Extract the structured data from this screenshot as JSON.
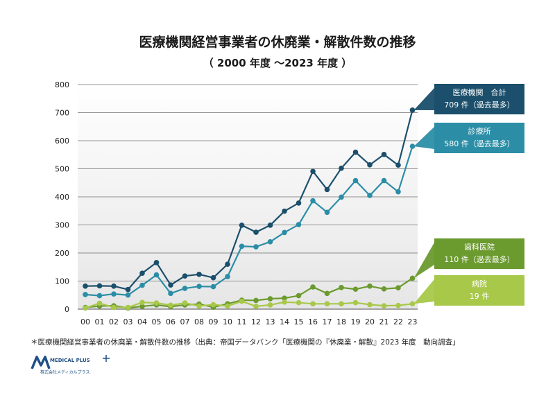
{
  "title": "医療機関経営事業者の休廃業・解散件数の推移",
  "subtitle": "（ 2000 年度 ～2023 年度 ）",
  "footnote": "＊医療機関経営事業者の休廃業・解散件数の推移（出典：帝国データバンク「医療機関の『休廃業・解散』2023 年度　動向調査」",
  "logo": {
    "name": "MEDICAL PLUS",
    "sub": "株式会社メディカルプラス"
  },
  "callouts": [
    {
      "id": "total",
      "line1": "医療機関　合計",
      "line2": "709 件（過去最多）",
      "color": "#1b4f6b"
    },
    {
      "id": "clinic",
      "line1": "診療所",
      "line2": "580 件（過去最多）",
      "color": "#2b8ea6"
    },
    {
      "id": "dental",
      "line1": "歯科医院",
      "line2": "110 件（過去最多）",
      "color": "#6b9a2e"
    },
    {
      "id": "hospital",
      "line1": "病院",
      "line2": "19 件",
      "color": "#a8c84a"
    }
  ],
  "chart_data": {
    "type": "line",
    "categories": [
      "00",
      "01",
      "02",
      "03",
      "04",
      "05",
      "06",
      "07",
      "08",
      "09",
      "10",
      "11",
      "12",
      "13",
      "14",
      "15",
      "16",
      "17",
      "18",
      "19",
      "20",
      "21",
      "22",
      "23"
    ],
    "ylim": [
      0,
      800
    ],
    "yticks": [
      0,
      100,
      200,
      300,
      400,
      500,
      600,
      700,
      800
    ],
    "grid": true,
    "series": [
      {
        "name": "医療機関　合計",
        "color": "#1b4f6b",
        "values": [
          82,
          83,
          82,
          70,
          128,
          166,
          86,
          118,
          124,
          112,
          160,
          299,
          274,
          299,
          349,
          378,
          491,
          426,
          502,
          559,
          514,
          551,
          513,
          709
        ]
      },
      {
        "name": "診療所",
        "color": "#2b8ea6",
        "values": [
          52,
          48,
          54,
          50,
          85,
          122,
          56,
          74,
          81,
          80,
          116,
          224,
          222,
          240,
          273,
          301,
          386,
          345,
          399,
          458,
          405,
          458,
          418,
          580
        ]
      },
      {
        "name": "歯科医院",
        "color": "#6b9a2e",
        "values": [
          6,
          11,
          12,
          4,
          10,
          15,
          9,
          15,
          18,
          7,
          19,
          32,
          31,
          37,
          39,
          48,
          79,
          56,
          77,
          71,
          82,
          72,
          76,
          110
        ]
      },
      {
        "name": "病院",
        "color": "#a8c84a",
        "values": [
          4,
          21,
          6,
          6,
          24,
          22,
          14,
          22,
          11,
          16,
          11,
          28,
          10,
          15,
          25,
          23,
          19,
          19,
          19,
          23,
          16,
          12,
          13,
          19
        ]
      }
    ]
  }
}
